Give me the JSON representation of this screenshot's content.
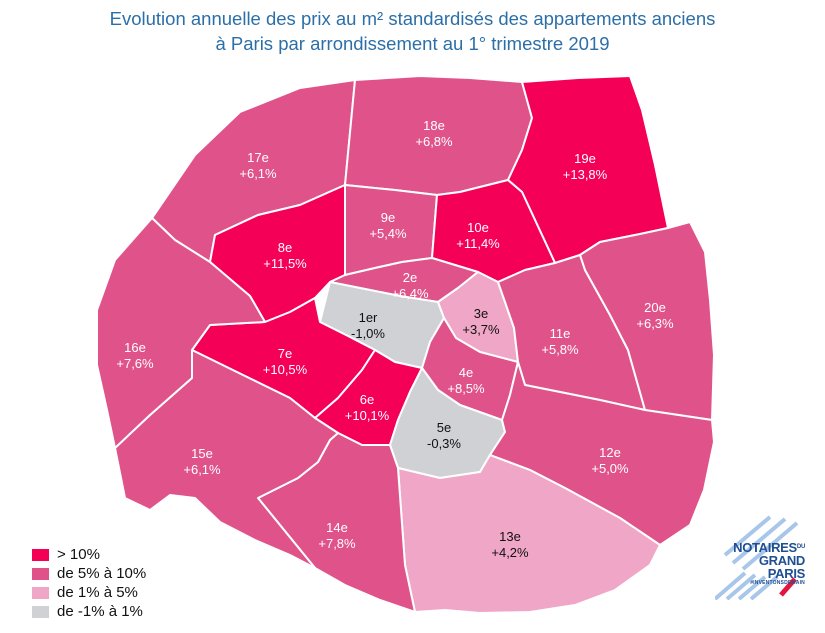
{
  "title": {
    "line1": "Evolution annuelle des prix au m² standardisés des appartements anciens",
    "line2": "à Paris par arrondissement au 1° trimestre 2019"
  },
  "colors": {
    "gt10": "#f50057",
    "5to10": "#e0538a",
    "1to5": "#f0a6c6",
    "m1to1": "#cfd1d4"
  },
  "legend": [
    {
      "label": "> 10%",
      "color_key": "gt10"
    },
    {
      "label": "de 5% à 10%",
      "color_key": "5to10"
    },
    {
      "label": "de 1% à 5%",
      "color_key": "1to5"
    },
    {
      "label": "de -1%  à 1%",
      "color_key": "m1to1"
    }
  ],
  "arrondissements": [
    {
      "id": "1",
      "name": "1er",
      "value": "-1,0%",
      "class": "m1to1"
    },
    {
      "id": "2",
      "name": "2e",
      "value": "+6,4%",
      "class": "5to10"
    },
    {
      "id": "3",
      "name": "3e",
      "value": "+3,7%",
      "class": "1to5"
    },
    {
      "id": "4",
      "name": "4e",
      "value": "+8,5%",
      "class": "5to10"
    },
    {
      "id": "5",
      "name": "5e",
      "value": "-0,3%",
      "class": "m1to1"
    },
    {
      "id": "6",
      "name": "6e",
      "value": "+10,1%",
      "class": "gt10"
    },
    {
      "id": "7",
      "name": "7e",
      "value": "+10,5%",
      "class": "gt10"
    },
    {
      "id": "8",
      "name": "8e",
      "value": "+11,5%",
      "class": "gt10"
    },
    {
      "id": "9",
      "name": "9e",
      "value": "+5,4%",
      "class": "5to10"
    },
    {
      "id": "10",
      "name": "10e",
      "value": "+11,4%",
      "class": "gt10"
    },
    {
      "id": "11",
      "name": "11e",
      "value": "+5,8%",
      "class": "5to10"
    },
    {
      "id": "12",
      "name": "12e",
      "value": "+5,0%",
      "class": "5to10"
    },
    {
      "id": "13",
      "name": "13e",
      "value": "+4,2%",
      "class": "1to5"
    },
    {
      "id": "14",
      "name": "14e",
      "value": "+7,8%",
      "class": "5to10"
    },
    {
      "id": "15",
      "name": "15e",
      "value": "+6,1%",
      "class": "5to10"
    },
    {
      "id": "16",
      "name": "16e",
      "value": "+7,6%",
      "class": "5to10"
    },
    {
      "id": "17",
      "name": "17e",
      "value": "+6,1%",
      "class": "5to10"
    },
    {
      "id": "18",
      "name": "18e",
      "value": "+6,8%",
      "class": "5to10"
    },
    {
      "id": "19",
      "name": "19e",
      "value": "+13,8%",
      "class": "gt10"
    },
    {
      "id": "20",
      "name": "20e",
      "value": "+6,3%",
      "class": "5to10"
    }
  ],
  "logo": {
    "line1": "NOTAIRES",
    "du": "DU",
    "line2": "GRAND",
    "line3": "PARIS",
    "tagline": "#INVENTONSDEMAIN"
  }
}
